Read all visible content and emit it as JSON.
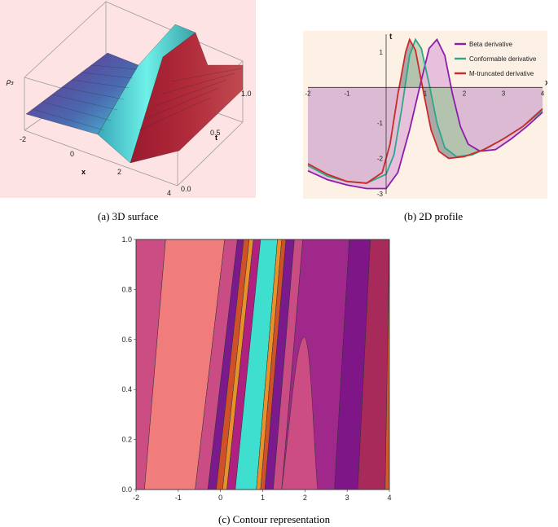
{
  "captions": {
    "a": "(a)  3D surface",
    "b": "(b)  2D profile",
    "c": "(c)  Contour representation"
  },
  "chart_data": [
    {
      "type": "surface",
      "panel": "a",
      "xlabel": "x",
      "ylabel": "t",
      "zlabel": "ρ₃",
      "x_ticks": [
        "-2",
        "0",
        "2",
        "4"
      ],
      "t_ticks": [
        "0.0",
        "0.5",
        "1.0"
      ],
      "xlim": [
        -2,
        4
      ],
      "tlim": [
        0,
        1
      ],
      "colors": {
        "background": "#fde3e3",
        "low": "#6a2a8a",
        "peak": "#5ee6e0",
        "ridge_dark": "#9a1a2e"
      }
    },
    {
      "type": "line",
      "panel": "b",
      "xlabel": "x",
      "ylabel": "t",
      "xlim": [
        -2,
        4
      ],
      "ylim": [
        -3,
        1.5
      ],
      "x_ticks": [
        "-2",
        "-1",
        "1",
        "2",
        "3",
        "4"
      ],
      "y_ticks": [
        "1",
        "-1",
        "-2",
        "-3"
      ],
      "legend_position": "top-right",
      "series": [
        {
          "name": "Beta derivative",
          "color": "#8c1eab",
          "x": [
            -2,
            -1.5,
            -1,
            -0.5,
            0,
            0.3,
            0.6,
            0.9,
            1.1,
            1.3,
            1.5,
            1.7,
            1.9,
            2.1,
            2.4,
            2.8,
            3.2,
            3.6,
            4
          ],
          "y": [
            -2.35,
            -2.6,
            -2.75,
            -2.85,
            -2.85,
            -2.4,
            -1.2,
            0.2,
            1.1,
            1.35,
            0.9,
            -0.2,
            -1.1,
            -1.6,
            -1.8,
            -1.75,
            -1.45,
            -1.1,
            -0.7
          ]
        },
        {
          "name": "Conformable derivative",
          "color": "#2aa889",
          "x": [
            -2,
            -1.5,
            -1,
            -0.5,
            0,
            0.2,
            0.4,
            0.6,
            0.75,
            0.9,
            1.1,
            1.3,
            1.5,
            1.8,
            2.2,
            2.6,
            3,
            3.5,
            4
          ],
          "y": [
            -2.2,
            -2.5,
            -2.65,
            -2.7,
            -2.45,
            -1.9,
            -0.6,
            0.9,
            1.35,
            1.1,
            0.1,
            -1.0,
            -1.7,
            -1.95,
            -1.9,
            -1.7,
            -1.45,
            -1.1,
            -0.65
          ]
        },
        {
          "name": "M-truncated derivative",
          "color": "#cc2a2a",
          "x": [
            -2,
            -1.5,
            -1,
            -0.5,
            -0.1,
            0.1,
            0.3,
            0.5,
            0.6,
            0.75,
            0.95,
            1.15,
            1.35,
            1.6,
            2,
            2.5,
            3,
            3.5,
            4
          ],
          "y": [
            -2.15,
            -2.45,
            -2.65,
            -2.7,
            -2.4,
            -1.6,
            -0.2,
            1.0,
            1.35,
            1.05,
            -0.1,
            -1.2,
            -1.8,
            -2.0,
            -1.95,
            -1.75,
            -1.45,
            -1.1,
            -0.6
          ]
        }
      ]
    },
    {
      "type": "contour",
      "panel": "c",
      "xlim": [
        -2,
        4
      ],
      "ylim": [
        0,
        1
      ],
      "x_ticks": [
        "-2",
        "-1",
        "0",
        "1",
        "2",
        "3",
        "4"
      ],
      "y_ticks": [
        "0.0",
        "0.2",
        "0.4",
        "0.6",
        "0.8",
        "1.0"
      ],
      "bands": [
        {
          "x0": -2.0,
          "x1": -1.8,
          "x0_top": -2.0,
          "x1_top": -1.3,
          "color": "#cc4c84"
        },
        {
          "x0": -1.8,
          "x1": -0.6,
          "x0_top": -1.3,
          "x1_top": 0.1,
          "color": "#f07c7c"
        },
        {
          "x0": -0.6,
          "x1": -0.3,
          "x0_top": 0.1,
          "x1_top": 0.4,
          "color": "#c94c85"
        },
        {
          "x0": -0.3,
          "x1": -0.1,
          "x0_top": 0.4,
          "x1_top": 0.55,
          "color": "#7a1a8c"
        },
        {
          "x0": -0.1,
          "x1": 0.05,
          "x0_top": 0.55,
          "x1_top": 0.68,
          "color": "#d0502a"
        },
        {
          "x0": 0.05,
          "x1": 0.15,
          "x0_top": 0.68,
          "x1_top": 0.78,
          "color": "#e8902a"
        },
        {
          "x0": 0.15,
          "x1": 0.35,
          "x0_top": 0.78,
          "x1_top": 0.95,
          "color": "#b02080"
        },
        {
          "x0": 0.35,
          "x1": 0.85,
          "x0_top": 0.95,
          "x1_top": 1.35,
          "color": "#3fdfd0"
        },
        {
          "x0": 0.85,
          "x1": 0.95,
          "x0_top": 1.35,
          "x1_top": 1.45,
          "color": "#e8902a"
        },
        {
          "x0": 0.95,
          "x1": 1.05,
          "x0_top": 1.45,
          "x1_top": 1.55,
          "color": "#d0502a"
        },
        {
          "x0": 1.05,
          "x1": 1.25,
          "x0_top": 1.55,
          "x1_top": 1.75,
          "color": "#7a1a8c"
        },
        {
          "x0": 1.25,
          "x1": 1.45,
          "x0_top": 1.75,
          "x1_top": 1.95,
          "color": "#c94c85"
        },
        {
          "x0": 1.45,
          "x1": 2.7,
          "x0_top": 1.95,
          "x1_top": 3.05,
          "color": "#a0288a"
        },
        {
          "x0": 2.7,
          "x1": 3.25,
          "x0_top": 3.05,
          "x1_top": 3.55,
          "color": "#7e1688"
        },
        {
          "x0": 3.25,
          "x1": 3.9,
          "x0_top": 3.55,
          "x1_top": 4.0,
          "color": "#a82a5a"
        },
        {
          "x0": 3.9,
          "x1": 4.0,
          "x0_top": 4.0,
          "x1_top": 4.0,
          "color": "#d05a30"
        }
      ],
      "lobe": {
        "x_left": 1.45,
        "x_right": 2.3,
        "x_tip": 2.0,
        "y_tip": 0.61,
        "color": "#cc4c84"
      }
    }
  ]
}
